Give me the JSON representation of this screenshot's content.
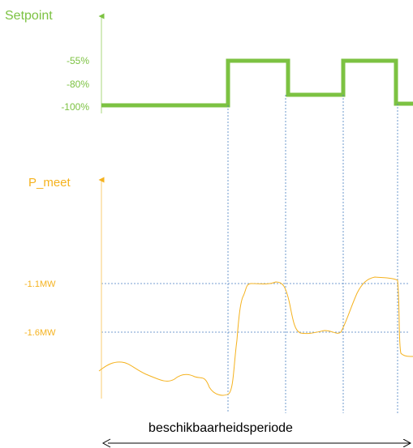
{
  "setpoint": {
    "label": "Setpoint",
    "levels": [
      "-55%",
      "-80%",
      "-100%"
    ]
  },
  "p_meet": {
    "label": "P_meet",
    "levels": [
      "-1.1MW",
      "-1.6MW"
    ]
  },
  "period_label": "beschikbaarheidsperiode"
}
